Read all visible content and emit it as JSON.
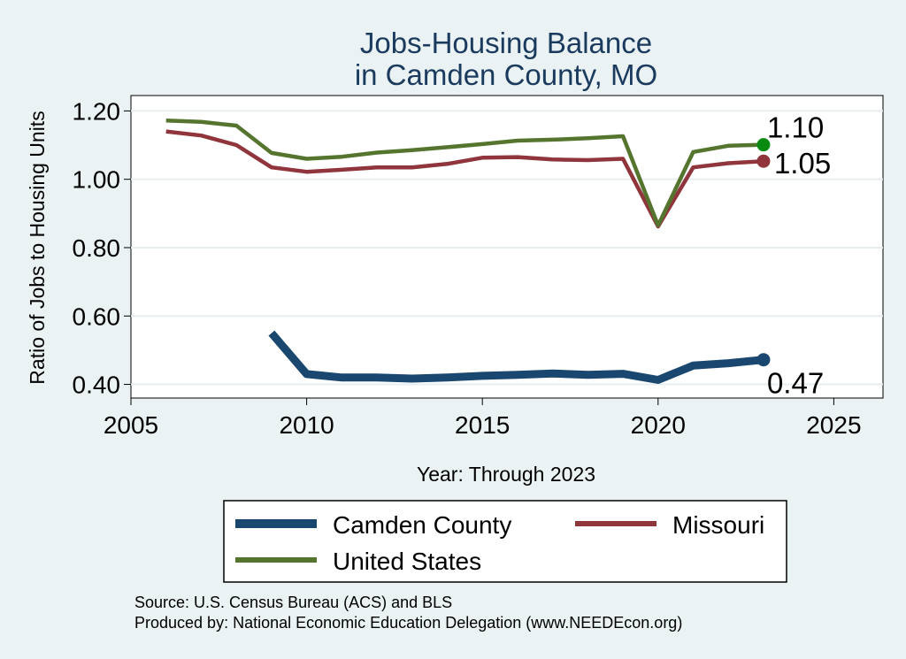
{
  "chart_data": {
    "type": "line",
    "title": [
      "Jobs-Housing Balance",
      "in Camden County, MO"
    ],
    "xlabel": "Year: Through 2023",
    "ylabel": "Ratio of Jobs to Housing Units",
    "xlim": [
      2005,
      2026.4
    ],
    "ylim": [
      0.36,
      1.245
    ],
    "xticks": [
      2005,
      2010,
      2015,
      2020,
      2025
    ],
    "yticks": [
      0.4,
      0.6,
      0.8,
      1.0,
      1.2
    ],
    "ytick_labels": [
      "0.40",
      "0.60",
      "0.80",
      "1.00",
      "1.20"
    ],
    "grid": true,
    "series": [
      {
        "name": "Camden County",
        "color": "#1a476f",
        "x": [
          2009,
          2010,
          2011,
          2012,
          2013,
          2014,
          2015,
          2016,
          2017,
          2018,
          2019,
          2020,
          2021,
          2022,
          2023
        ],
        "values": [
          0.55,
          0.43,
          0.42,
          0.42,
          0.417,
          0.42,
          0.425,
          0.428,
          0.432,
          0.428,
          0.431,
          0.413,
          0.455,
          0.462,
          0.472
        ],
        "end_label": "0.47"
      },
      {
        "name": "Missouri",
        "color": "#90353b",
        "x": [
          2006,
          2007,
          2008,
          2009,
          2010,
          2011,
          2012,
          2013,
          2014,
          2015,
          2016,
          2017,
          2018,
          2019,
          2020,
          2021,
          2022,
          2023
        ],
        "values": [
          1.14,
          1.128,
          1.1,
          1.035,
          1.022,
          1.028,
          1.035,
          1.035,
          1.045,
          1.063,
          1.065,
          1.058,
          1.056,
          1.06,
          0.862,
          1.035,
          1.047,
          1.053
        ],
        "end_label": "1.05"
      },
      {
        "name": "United States",
        "color": "#55752f",
        "endpoint_color": "#0a8a10",
        "x": [
          2006,
          2007,
          2008,
          2009,
          2010,
          2011,
          2012,
          2013,
          2014,
          2015,
          2016,
          2017,
          2018,
          2019,
          2020,
          2021,
          2022,
          2023
        ],
        "values": [
          1.172,
          1.168,
          1.157,
          1.077,
          1.06,
          1.066,
          1.078,
          1.085,
          1.094,
          1.103,
          1.113,
          1.116,
          1.12,
          1.126,
          0.865,
          1.08,
          1.098,
          1.101
        ],
        "end_label": "1.10"
      }
    ]
  },
  "source_lines": [
    "Source: U.S. Census Bureau (ACS) and BLS",
    "Produced by: National Economic Education Delegation (www.NEEDEcon.org)"
  ]
}
